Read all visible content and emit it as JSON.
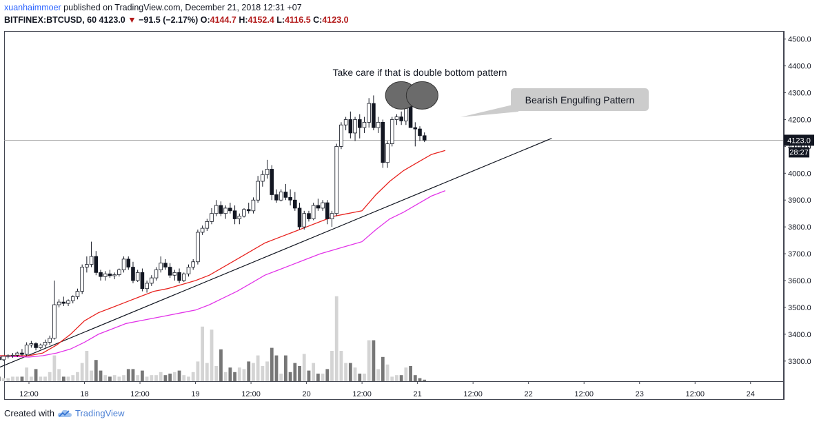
{
  "header": {
    "author": "xuanhaimmoer",
    "published_text": " published on TradingView.com, December 21, 2018 12:31 +07",
    "symbol": "BITFINEX:BTCUSD, 60",
    "last": "4123.0",
    "down_arrow": "▼",
    "change": "−91.5 (−2.17%)",
    "o_label": "O:",
    "o_value": "4144.7",
    "h_label": "H:",
    "h_value": "4152.4",
    "l_label": "L:",
    "l_value": "4116.5",
    "c_label": "C:",
    "c_value": "4123.0"
  },
  "footer": {
    "created_with": "Created with",
    "brand": "TradingView",
    "logo_icon": "tradingview-cloud-icon"
  },
  "chart_data": {
    "type": "candlestick",
    "y_range": [
      3225,
      4530
    ],
    "y_ticks": [
      3300,
      3400,
      3500,
      3600,
      3700,
      3800,
      3900,
      4000,
      4100,
      4200,
      4300,
      4400,
      4500
    ],
    "y_tick_labels": [
      "3300.0",
      "3400.0",
      "3500.0",
      "3600.0",
      "3700.0",
      "3800.0",
      "3900.0",
      "4000.0",
      "4100.0",
      "4200.0",
      "4300.0",
      "4400.0",
      "4500.0"
    ],
    "x_range_hours": [
      -8,
      91
    ],
    "x_ticks": [
      {
        "label": "12:00",
        "h": 0
      },
      {
        "label": "18",
        "h": 12
      },
      {
        "label": "12:00",
        "h": 24
      },
      {
        "label": "19",
        "h": 36
      },
      {
        "label": "12:00",
        "h": 48
      },
      {
        "label": "20",
        "h": 60
      },
      {
        "label": "12:00",
        "h": 72
      },
      {
        "label": "21",
        "h": 84
      },
      {
        "label": "12:00",
        "h": 96
      },
      {
        "label": "22",
        "h": 108
      },
      {
        "label": "12:00",
        "h": 120
      },
      {
        "label": "23",
        "h": 132
      },
      {
        "label": "12:00",
        "h": 144
      },
      {
        "label": "24",
        "h": 156
      }
    ],
    "price_label": "4123.0",
    "countdown_label": "28:27",
    "colors": {
      "ma_fast": "#e8231f",
      "ma_slow": "#e233e8",
      "trendline": "#131722",
      "last_price_line": "#9e9e9e",
      "volume_up": "#d4d4d4",
      "volume_down": "#777777",
      "candle_up_fill": "#ffffff",
      "candle_down_fill": "#131722"
    },
    "annotations": [
      {
        "type": "text",
        "text": "Take care if that is double bottom pattern"
      },
      {
        "type": "callout",
        "text": "Bearish Engulfing Pattern"
      }
    ],
    "highlight_circles": [
      {
        "h_center": 80.5,
        "price_center": 4290
      },
      {
        "h_center": 85,
        "price_center": 4290
      }
    ],
    "trendline": [
      {
        "h": -8,
        "price": 3265
      },
      {
        "h": 113,
        "price": 4130
      }
    ],
    "ma_fast": [
      [
        -8,
        3320
      ],
      [
        -4,
        3320
      ],
      [
        0,
        3320
      ],
      [
        3,
        3330
      ],
      [
        6,
        3360
      ],
      [
        9,
        3400
      ],
      [
        12,
        3450
      ],
      [
        15,
        3480
      ],
      [
        18,
        3500
      ],
      [
        21,
        3520
      ],
      [
        24,
        3540
      ],
      [
        27,
        3560
      ],
      [
        30,
        3570
      ],
      [
        33,
        3585
      ],
      [
        36,
        3600
      ],
      [
        39,
        3620
      ],
      [
        42,
        3650
      ],
      [
        45,
        3680
      ],
      [
        48,
        3710
      ],
      [
        51,
        3740
      ],
      [
        54,
        3760
      ],
      [
        57,
        3780
      ],
      [
        60,
        3800
      ],
      [
        63,
        3820
      ],
      [
        66,
        3840
      ],
      [
        69,
        3850
      ],
      [
        72,
        3860
      ],
      [
        75,
        3920
      ],
      [
        78,
        3970
      ],
      [
        81,
        4010
      ],
      [
        84,
        4040
      ],
      [
        87,
        4070
      ],
      [
        90,
        4085
      ]
    ],
    "ma_slow": [
      [
        -8,
        3320
      ],
      [
        0,
        3315
      ],
      [
        3,
        3320
      ],
      [
        6,
        3330
      ],
      [
        9,
        3345
      ],
      [
        12,
        3370
      ],
      [
        15,
        3400
      ],
      [
        18,
        3420
      ],
      [
        21,
        3440
      ],
      [
        24,
        3450
      ],
      [
        27,
        3460
      ],
      [
        30,
        3470
      ],
      [
        33,
        3480
      ],
      [
        36,
        3490
      ],
      [
        39,
        3510
      ],
      [
        42,
        3535
      ],
      [
        45,
        3560
      ],
      [
        48,
        3590
      ],
      [
        51,
        3620
      ],
      [
        54,
        3640
      ],
      [
        57,
        3660
      ],
      [
        60,
        3680
      ],
      [
        63,
        3700
      ],
      [
        66,
        3715
      ],
      [
        69,
        3730
      ],
      [
        72,
        3745
      ],
      [
        75,
        3790
      ],
      [
        78,
        3830
      ],
      [
        81,
        3855
      ],
      [
        84,
        3885
      ],
      [
        87,
        3915
      ],
      [
        90,
        3935
      ]
    ],
    "candles": [
      [
        3300,
        3325,
        3290,
        3315,
        4
      ],
      [
        3315,
        3325,
        3300,
        3305,
        3
      ],
      [
        3305,
        3320,
        3300,
        3318,
        2
      ],
      [
        3318,
        3325,
        3310,
        3320,
        2
      ],
      [
        3320,
        3330,
        3312,
        3322,
        3
      ],
      [
        3322,
        3335,
        3315,
        3330,
        3
      ],
      [
        3330,
        3345,
        3320,
        3325,
        3
      ],
      [
        3325,
        3370,
        3320,
        3360,
        9
      ],
      [
        3360,
        3375,
        3350,
        3365,
        3
      ],
      [
        3365,
        3370,
        3340,
        3350,
        8
      ],
      [
        3350,
        3365,
        3345,
        3360,
        3
      ],
      [
        3360,
        3380,
        3350,
        3370,
        3
      ],
      [
        3370,
        3395,
        3360,
        3385,
        6
      ],
      [
        3385,
        3600,
        3380,
        3510,
        17
      ],
      [
        3510,
        3530,
        3500,
        3520,
        8
      ],
      [
        3520,
        3540,
        3505,
        3515,
        3
      ],
      [
        3515,
        3530,
        3505,
        3525,
        3
      ],
      [
        3525,
        3545,
        3515,
        3540,
        4
      ],
      [
        3540,
        3570,
        3530,
        3560,
        6
      ],
      [
        3560,
        3660,
        3550,
        3650,
        12
      ],
      [
        3650,
        3690,
        3630,
        3660,
        20
      ],
      [
        3660,
        3745,
        3650,
        3690,
        7
      ],
      [
        3690,
        3710,
        3620,
        3630,
        14
      ],
      [
        3630,
        3640,
        3600,
        3615,
        7
      ],
      [
        3615,
        3635,
        3600,
        3625,
        4
      ],
      [
        3625,
        3640,
        3610,
        3618,
        3
      ],
      [
        3618,
        3630,
        3605,
        3622,
        4
      ],
      [
        3622,
        3645,
        3615,
        3640,
        3
      ],
      [
        3640,
        3690,
        3630,
        3680,
        4
      ],
      [
        3680,
        3690,
        3640,
        3650,
        8
      ],
      [
        3650,
        3670,
        3590,
        3600,
        8
      ],
      [
        3600,
        3640,
        3595,
        3630,
        4
      ],
      [
        3630,
        3645,
        3560,
        3570,
        7
      ],
      [
        3570,
        3600,
        3555,
        3590,
        3
      ],
      [
        3590,
        3620,
        3580,
        3610,
        4
      ],
      [
        3610,
        3650,
        3600,
        3640,
        4
      ],
      [
        3640,
        3690,
        3630,
        3665,
        6
      ],
      [
        3665,
        3680,
        3640,
        3650,
        4
      ],
      [
        3650,
        3665,
        3610,
        3620,
        5
      ],
      [
        3620,
        3640,
        3600,
        3630,
        6
      ],
      [
        3630,
        3645,
        3590,
        3600,
        7
      ],
      [
        3600,
        3630,
        3595,
        3625,
        4
      ],
      [
        3625,
        3660,
        3615,
        3650,
        3
      ],
      [
        3650,
        3680,
        3640,
        3670,
        6
      ],
      [
        3670,
        3790,
        3660,
        3780,
        13
      ],
      [
        3780,
        3805,
        3770,
        3795,
        36
      ],
      [
        3795,
        3830,
        3785,
        3820,
        12
      ],
      [
        3820,
        3870,
        3810,
        3850,
        34
      ],
      [
        3850,
        3900,
        3840,
        3880,
        10
      ],
      [
        3880,
        3895,
        3840,
        3850,
        21
      ],
      [
        3850,
        3880,
        3830,
        3870,
        6
      ],
      [
        3870,
        3890,
        3850,
        3860,
        9
      ],
      [
        3860,
        3880,
        3810,
        3830,
        6
      ],
      [
        3830,
        3850,
        3810,
        3840,
        9
      ],
      [
        3840,
        3870,
        3835,
        3865,
        8
      ],
      [
        3865,
        3890,
        3850,
        3860,
        13
      ],
      [
        3860,
        3910,
        3850,
        3900,
        12
      ],
      [
        3900,
        3990,
        3890,
        3970,
        17
      ],
      [
        3970,
        4010,
        3950,
        3995,
        10
      ],
      [
        3995,
        4050,
        3980,
        4015,
        13
      ],
      [
        4015,
        4030,
        3900,
        3920,
        22
      ],
      [
        3920,
        3940,
        3890,
        3900,
        17
      ],
      [
        3900,
        3940,
        3895,
        3930,
        5
      ],
      [
        3930,
        3960,
        3900,
        3910,
        17
      ],
      [
        3910,
        3940,
        3880,
        3900,
        6
      ],
      [
        3900,
        3930,
        3860,
        3870,
        12
      ],
      [
        3870,
        3890,
        3790,
        3800,
        10
      ],
      [
        3800,
        3860,
        3790,
        3850,
        18
      ],
      [
        3850,
        3860,
        3820,
        3830,
        7
      ],
      [
        3830,
        3890,
        3825,
        3880,
        12
      ],
      [
        3880,
        3905,
        3860,
        3870,
        5
      ],
      [
        3870,
        3900,
        3860,
        3890,
        5
      ],
      [
        3890,
        3900,
        3810,
        3830,
        8
      ],
      [
        3830,
        3860,
        3800,
        3850,
        20
      ],
      [
        3850,
        4110,
        3840,
        4100,
        56
      ],
      [
        4100,
        4190,
        4090,
        4180,
        20
      ],
      [
        4180,
        4210,
        4160,
        4200,
        12
      ],
      [
        4200,
        4230,
        4130,
        4150,
        12
      ],
      [
        4150,
        4210,
        4120,
        4200,
        9
      ],
      [
        4200,
        4220,
        4130,
        4170,
        5
      ],
      [
        4170,
        4210,
        4150,
        4190,
        5
      ],
      [
        4190,
        4280,
        4170,
        4260,
        27
      ],
      [
        4260,
        4290,
        4160,
        4170,
        27
      ],
      [
        4170,
        4210,
        4150,
        4190,
        8
      ],
      [
        4190,
        4200,
        4020,
        4040,
        16
      ],
      [
        4040,
        4120,
        4020,
        4110,
        11
      ],
      [
        4110,
        4210,
        4100,
        4200,
        3
      ],
      [
        4200,
        4220,
        4180,
        4210,
        4
      ],
      [
        4210,
        4230,
        4180,
        4195,
        4
      ],
      [
        4195,
        4280,
        4180,
        4270,
        9
      ],
      [
        4270,
        4280,
        4170,
        4170,
        10
      ],
      [
        4170,
        4190,
        4100,
        4165,
        4
      ],
      [
        4165,
        4175,
        4120,
        4140,
        2
      ],
      [
        4140,
        4152,
        4116,
        4123,
        1
      ]
    ]
  }
}
